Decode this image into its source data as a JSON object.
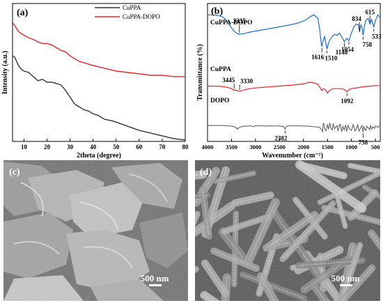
{
  "chart_data": [
    {
      "panel": "(a)",
      "type": "line",
      "xlabel": "2theta (degree)",
      "ylabel": "Intensity (a.u.)",
      "xlim": [
        5,
        80
      ],
      "x_ticks": [
        "10",
        "20",
        "30",
        "40",
        "50",
        "60",
        "70",
        "80"
      ],
      "legend_position": "top-right",
      "series": [
        {
          "name": "CuPPA",
          "color": "#333333",
          "x": [
            5,
            6,
            7,
            8,
            9,
            10,
            12,
            14,
            16,
            18,
            20,
            22,
            24,
            26,
            28,
            30,
            32,
            34,
            36,
            38,
            40,
            42,
            45,
            48,
            50,
            55,
            60,
            65,
            70,
            75,
            80
          ],
          "y": [
            0.62,
            0.61,
            0.57,
            0.54,
            0.52,
            0.51,
            0.5,
            0.47,
            0.44,
            0.45,
            0.43,
            0.43,
            0.42,
            0.41,
            0.37,
            0.32,
            0.27,
            0.25,
            0.23,
            0.22,
            0.2,
            0.19,
            0.16,
            0.15,
            0.14,
            0.11,
            0.08,
            0.06,
            0.04,
            0.02,
            0.01
          ]
        },
        {
          "name": "CuPPA-DOPO",
          "color": "#e8262a",
          "x": [
            5,
            6,
            7,
            8,
            9,
            10,
            12,
            14,
            16,
            18,
            20,
            22,
            24,
            26,
            28,
            30,
            32,
            34,
            36,
            38,
            40,
            45,
            50,
            55,
            60,
            65,
            70,
            75,
            80
          ],
          "y": [
            0.86,
            0.84,
            0.81,
            0.79,
            0.78,
            0.77,
            0.75,
            0.74,
            0.72,
            0.71,
            0.71,
            0.7,
            0.68,
            0.66,
            0.65,
            0.62,
            0.6,
            0.58,
            0.57,
            0.56,
            0.55,
            0.53,
            0.51,
            0.5,
            0.49,
            0.48,
            0.48,
            0.47,
            0.47
          ]
        }
      ]
    },
    {
      "panel": "(b)",
      "type": "line",
      "xlabel": "Wavenumber (cm⁻¹)",
      "ylabel": "Transmittance (%)",
      "xlim": [
        4000,
        400
      ],
      "x_ticks": [
        "4000",
        "3500",
        "3000",
        "2500",
        "2000",
        "1500",
        "1000",
        "500"
      ],
      "series": [
        {
          "name": "CuPPA-DOPO",
          "color": "#1a6fd4",
          "x": [
            4000,
            3900,
            3800,
            3700,
            3650,
            3600,
            3550,
            3500,
            3450,
            3400,
            3335,
            3250,
            3100,
            2900,
            2700,
            2500,
            2300,
            2100,
            1950,
            1850,
            1780,
            1700,
            1660,
            1640,
            1616,
            1600,
            1560,
            1540,
            1510,
            1480,
            1450,
            1400,
            1350,
            1300,
            1250,
            1200,
            1148,
            1100,
            1054,
            1000,
            950,
            900,
            850,
            834,
            800,
            780,
            758,
            730,
            700,
            650,
            615,
            580,
            550,
            533,
            500,
            450,
            420
          ],
          "y": [
            0.96,
            0.96,
            0.95,
            0.93,
            0.9,
            0.85,
            0.79,
            0.73,
            0.68,
            0.64,
            0.62,
            0.63,
            0.66,
            0.69,
            0.72,
            0.75,
            0.78,
            0.82,
            0.87,
            0.93,
            0.96,
            0.9,
            0.7,
            0.52,
            0.4,
            0.48,
            0.58,
            0.5,
            0.36,
            0.46,
            0.52,
            0.58,
            0.62,
            0.6,
            0.64,
            0.57,
            0.49,
            0.55,
            0.51,
            0.64,
            0.75,
            0.8,
            0.78,
            0.66,
            0.78,
            0.74,
            0.6,
            0.76,
            0.86,
            0.9,
            0.8,
            0.88,
            0.79,
            0.74,
            0.86,
            0.96,
            0.92
          ]
        },
        {
          "name": "CuPPA",
          "color": "#e8262a",
          "x": [
            4000,
            3900,
            3800,
            3700,
            3600,
            3500,
            3445,
            3400,
            3330,
            3250,
            3150,
            3000,
            2800,
            2600,
            2400,
            2200,
            2000,
            1850,
            1700,
            1640,
            1616,
            1590,
            1540,
            1500,
            1470,
            1420,
            1350,
            1250,
            1150,
            1092,
            1050,
            1000,
            900,
            800,
            700,
            600,
            500,
            420
          ],
          "y": [
            0.47,
            0.47,
            0.47,
            0.46,
            0.44,
            0.4,
            0.35,
            0.36,
            0.32,
            0.36,
            0.39,
            0.42,
            0.44,
            0.46,
            0.48,
            0.5,
            0.53,
            0.58,
            0.52,
            0.4,
            0.34,
            0.4,
            0.37,
            0.28,
            0.33,
            0.38,
            0.4,
            0.4,
            0.38,
            0.31,
            0.37,
            0.4,
            0.42,
            0.44,
            0.46,
            0.47,
            0.48,
            0.48
          ]
        },
        {
          "name": "DOPO",
          "color": "#555555",
          "x": [
            4000,
            3900,
            3800,
            3700,
            3600,
            3500,
            3450,
            3400,
            3380,
            3350,
            3300,
            3200,
            3100,
            3060,
            3000,
            2900,
            2800,
            2700,
            2600,
            2500,
            2440,
            2420,
            2400,
            2382,
            2370,
            2350,
            2300,
            2200,
            2100,
            2000,
            1900,
            1800,
            1700,
            1650,
            1620,
            1600,
            1590,
            1580,
            1560,
            1530,
            1500,
            1480,
            1450,
            1430,
            1400,
            1380,
            1350,
            1300,
            1280,
            1240,
            1200,
            1180,
            1150,
            1120,
            1100,
            1070,
            1040,
            1000,
            960,
            930,
            900,
            870,
            840,
            800,
            780,
            758,
            740,
            720,
            700,
            680,
            650,
            620,
            600,
            580,
            550,
            520,
            500,
            470,
            440,
            420
          ],
          "y": [
            0.22,
            0.22,
            0.22,
            0.22,
            0.21,
            0.2,
            0.18,
            0.15,
            0.1,
            0.14,
            0.18,
            0.2,
            0.21,
            0.18,
            0.21,
            0.21,
            0.2,
            0.21,
            0.2,
            0.21,
            0.18,
            0.19,
            0.15,
            0.1,
            0.15,
            0.2,
            0.21,
            0.21,
            0.21,
            0.2,
            0.2,
            0.18,
            0.17,
            0.14,
            0.08,
            0.02,
            0.25,
            0.3,
            0.12,
            0.05,
            0.26,
            0.1,
            0.3,
            0.15,
            0.08,
            0.28,
            0.12,
            0.22,
            0.05,
            0.26,
            0.02,
            0.2,
            0.08,
            0.24,
            0.03,
            0.22,
            0.1,
            0.06,
            0.26,
            0.04,
            0.1,
            0.24,
            0.04,
            0.16,
            0.22,
            0.01,
            0.18,
            0.1,
            0.06,
            0.2,
            0.15,
            0.08,
            0.22,
            0.1,
            0.18,
            0.12,
            0.21,
            0.18,
            0.16,
            0.22
          ]
        }
      ],
      "annotations": {
        "CuPPA-DOPO": [
          "3335",
          "1616",
          "1510",
          "1148",
          "1054",
          "834",
          "758",
          "615",
          "533"
        ],
        "CuPPA": [
          "3445",
          "3330",
          "1092"
        ],
        "DOPO": [
          "2382",
          "758"
        ]
      }
    },
    {
      "panel": "(c)",
      "type": "image",
      "scale_bar": "500 nm"
    },
    {
      "panel": "(d)",
      "type": "image",
      "scale_bar": "500 nm"
    }
  ]
}
